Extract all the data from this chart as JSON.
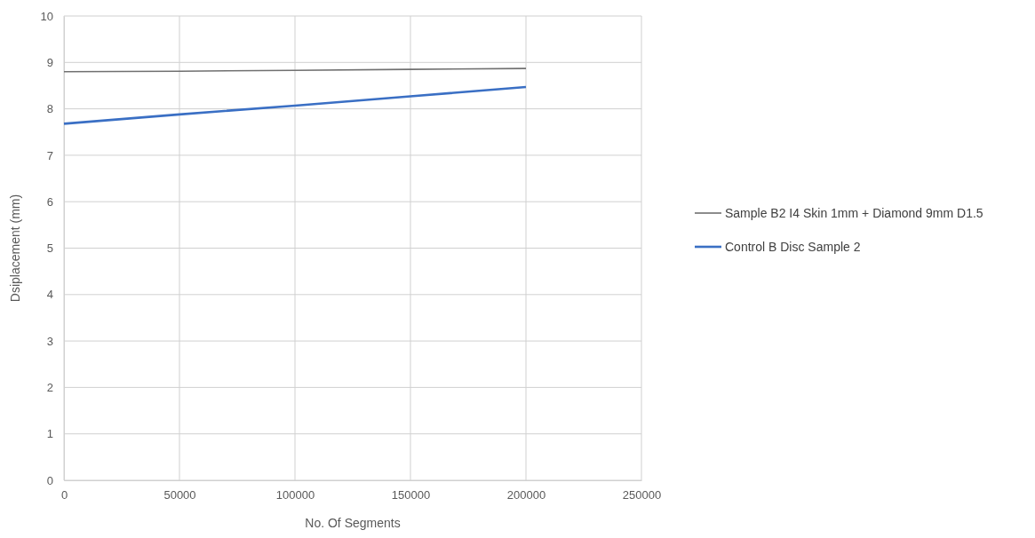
{
  "chart_data": {
    "type": "line",
    "xlabel": "No. Of Segments",
    "ylabel": "Dsiplacement (mm)",
    "x": [
      0,
      50000,
      100000,
      150000,
      200000
    ],
    "series": [
      {
        "name": "Sample B2 I4 Skin 1mm + Diamond 9mm D1.5",
        "color": "#707070",
        "values": [
          8.8,
          8.81,
          8.83,
          8.85,
          8.87
        ]
      },
      {
        "name": "Control B Disc Sample 2",
        "color": "#3a6fc4",
        "values": [
          7.68,
          7.88,
          8.07,
          8.27,
          8.47
        ]
      }
    ],
    "xlim": [
      0,
      250000
    ],
    "xticks": [
      0,
      50000,
      100000,
      150000,
      200000,
      250000
    ],
    "ylim": [
      0,
      10
    ],
    "yticks": [
      0,
      1,
      2,
      3,
      4,
      5,
      6,
      7,
      8,
      9,
      10
    ],
    "grid": true,
    "legend": "right",
    "marker": "none",
    "line_style": "solid"
  }
}
